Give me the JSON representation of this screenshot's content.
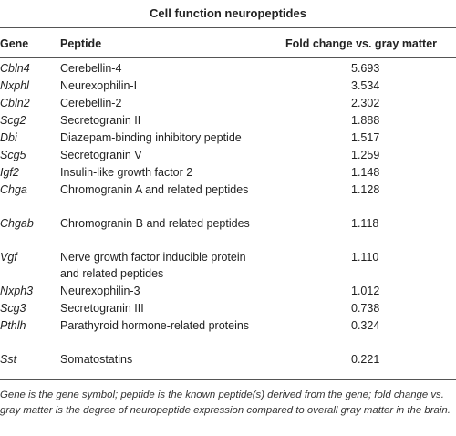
{
  "title": "Cell function neuropeptides",
  "columns": {
    "gene": "Gene",
    "peptide": "Peptide",
    "fold": "Fold change vs. gray matter"
  },
  "rows": [
    {
      "gene": "Cbln4",
      "peptide": "Cerebellin-4",
      "fold": "5.693"
    },
    {
      "gene": "Nxphl",
      "peptide": "Neurexophilin-I",
      "fold": "3.534"
    },
    {
      "gene": "Cbln2",
      "peptide": "Cerebellin-2",
      "fold": "2.302"
    },
    {
      "gene": "Scg2",
      "peptide": "Secretogranin II",
      "fold": "1.888"
    },
    {
      "gene": "Dbi",
      "peptide": "Diazepam-binding inhibitory peptide",
      "fold": "1.517"
    },
    {
      "gene": "Scg5",
      "peptide": "Secretogranin V",
      "fold": "1.259"
    },
    {
      "gene": "Igf2",
      "peptide": "Insulin-like growth factor 2",
      "fold": "1.148"
    },
    {
      "gene": "Chga",
      "peptide": "Chromogranin A and related peptides",
      "fold": "1.128"
    },
    {
      "gene": "Chgab",
      "peptide": "Chromogranin B and related peptides",
      "fold": "1.118"
    },
    {
      "gene": "Vgf",
      "peptide": "Nerve growth factor inducible protein and related peptides",
      "fold": "1.110"
    },
    {
      "gene": "Nxph3",
      "peptide": "Neurexophilin-3",
      "fold": "1.012"
    },
    {
      "gene": "Scg3",
      "peptide": "Secretogranin III",
      "fold": "0.738"
    },
    {
      "gene": "Pthlh",
      "peptide": "Parathyroid hormone-related proteins",
      "fold": "0.324"
    },
    {
      "gene": "Sst",
      "peptide": "Somatostatins",
      "fold": "0.221"
    }
  ],
  "footnote": "Gene is the gene symbol; peptide is the known peptide(s) derived from the gene; fold change vs. gray matter is the degree of neuropeptide expression compared to overall gray matter in the brain."
}
